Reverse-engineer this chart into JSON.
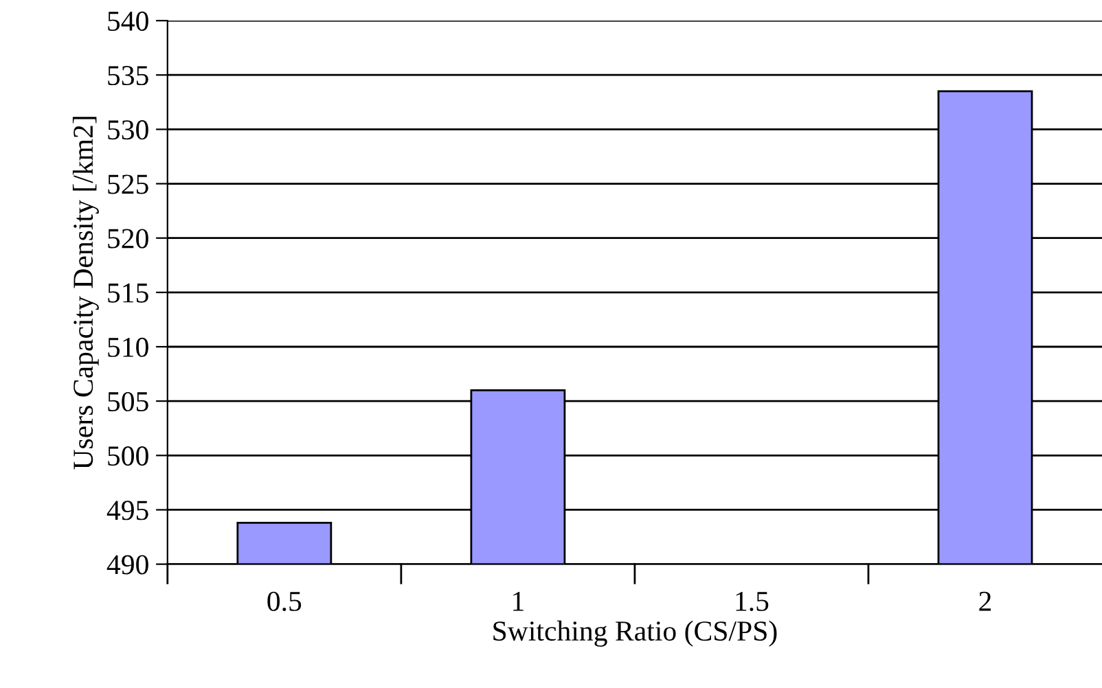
{
  "chart_data": {
    "type": "bar",
    "xlabel": "Switching Ratio (CS/PS)",
    "ylabel": "Users Capacity Density [/km2]",
    "categories": [
      "0.5",
      "1",
      "1.5",
      "2"
    ],
    "values": [
      493.8,
      506.0,
      null,
      533.5
    ],
    "color": "#9999ff",
    "ylim": [
      490,
      540
    ],
    "yticks": [
      490,
      495,
      500,
      505,
      510,
      515,
      520,
      525,
      530,
      535,
      540
    ],
    "grid": "y",
    "legend": false
  }
}
